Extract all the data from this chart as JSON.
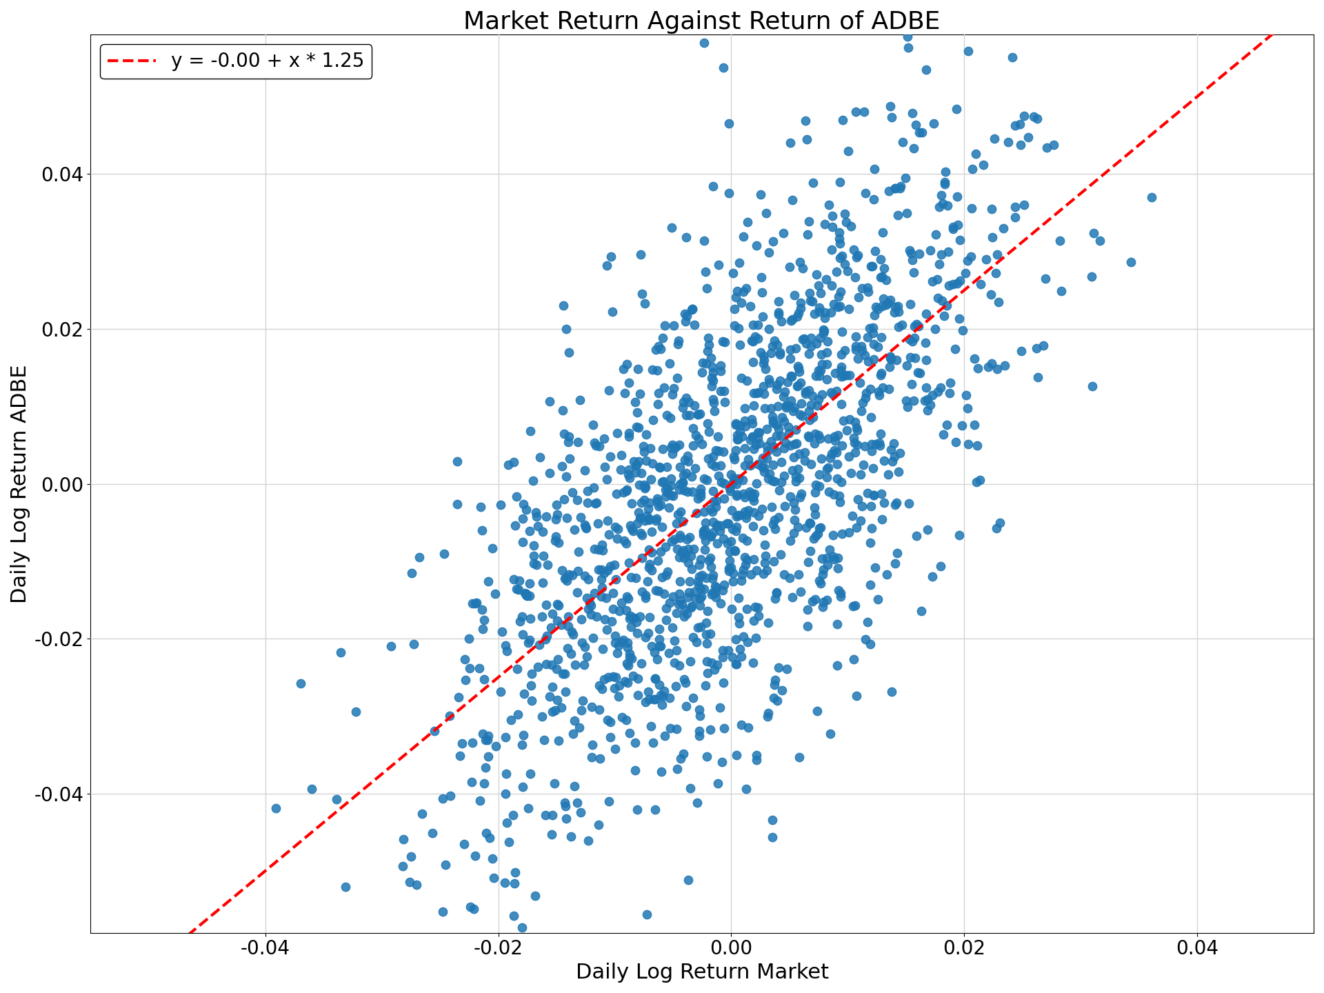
{
  "title": "Market Return Against Return of ADBE",
  "xlabel": "Daily Log Return Market",
  "ylabel": "Daily Log Return ADBE",
  "intercept": -0.0,
  "slope": 1.25,
  "legend_label": "y = -0.00 + x * 1.25",
  "dot_color": "#1f77b4",
  "line_color": "#ff0000",
  "xlim": [
    -0.055,
    0.05
  ],
  "ylim": [
    -0.058,
    0.058
  ],
  "xticks": [
    -0.04,
    -0.02,
    0.0,
    0.02,
    0.04
  ],
  "yticks": [
    -0.04,
    -0.02,
    0.0,
    0.02,
    0.04
  ],
  "dot_size": 80,
  "dot_alpha": 0.85,
  "n_points": 1500,
  "seed": 7,
  "market_std": 0.012,
  "residual_std": 0.016,
  "title_fontsize": 26,
  "label_fontsize": 22,
  "tick_fontsize": 20,
  "legend_fontsize": 20
}
